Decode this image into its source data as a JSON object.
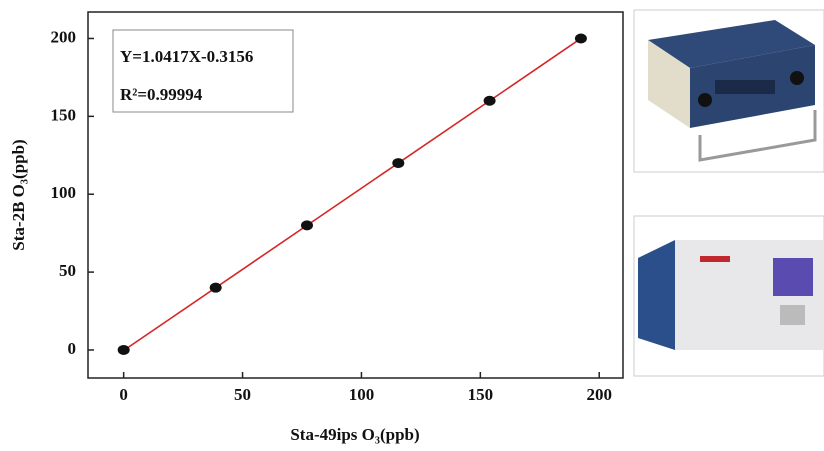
{
  "chart_data": {
    "type": "scatter",
    "xlabel": "Sta-49ips O₃(ppb)",
    "ylabel": "Sta-2B O₃(ppb)",
    "annotations": [
      "Y=1.0417X-0.3156",
      "R²=0.99994"
    ],
    "x": [
      0,
      38.7,
      77.1,
      115.5,
      153.9,
      192.3
    ],
    "values": [
      0,
      40,
      80,
      120,
      160,
      200
    ],
    "color": "#111111",
    "fit": {
      "slope": 1.0417,
      "intercept": -0.3156,
      "color": "#d62728"
    },
    "xlim": [
      -15,
      210
    ],
    "ylim": [
      -18,
      217
    ],
    "xticks": [
      0,
      50,
      100,
      150,
      200
    ],
    "yticks": [
      0,
      50,
      100,
      150,
      200
    ],
    "grid": false
  }
}
